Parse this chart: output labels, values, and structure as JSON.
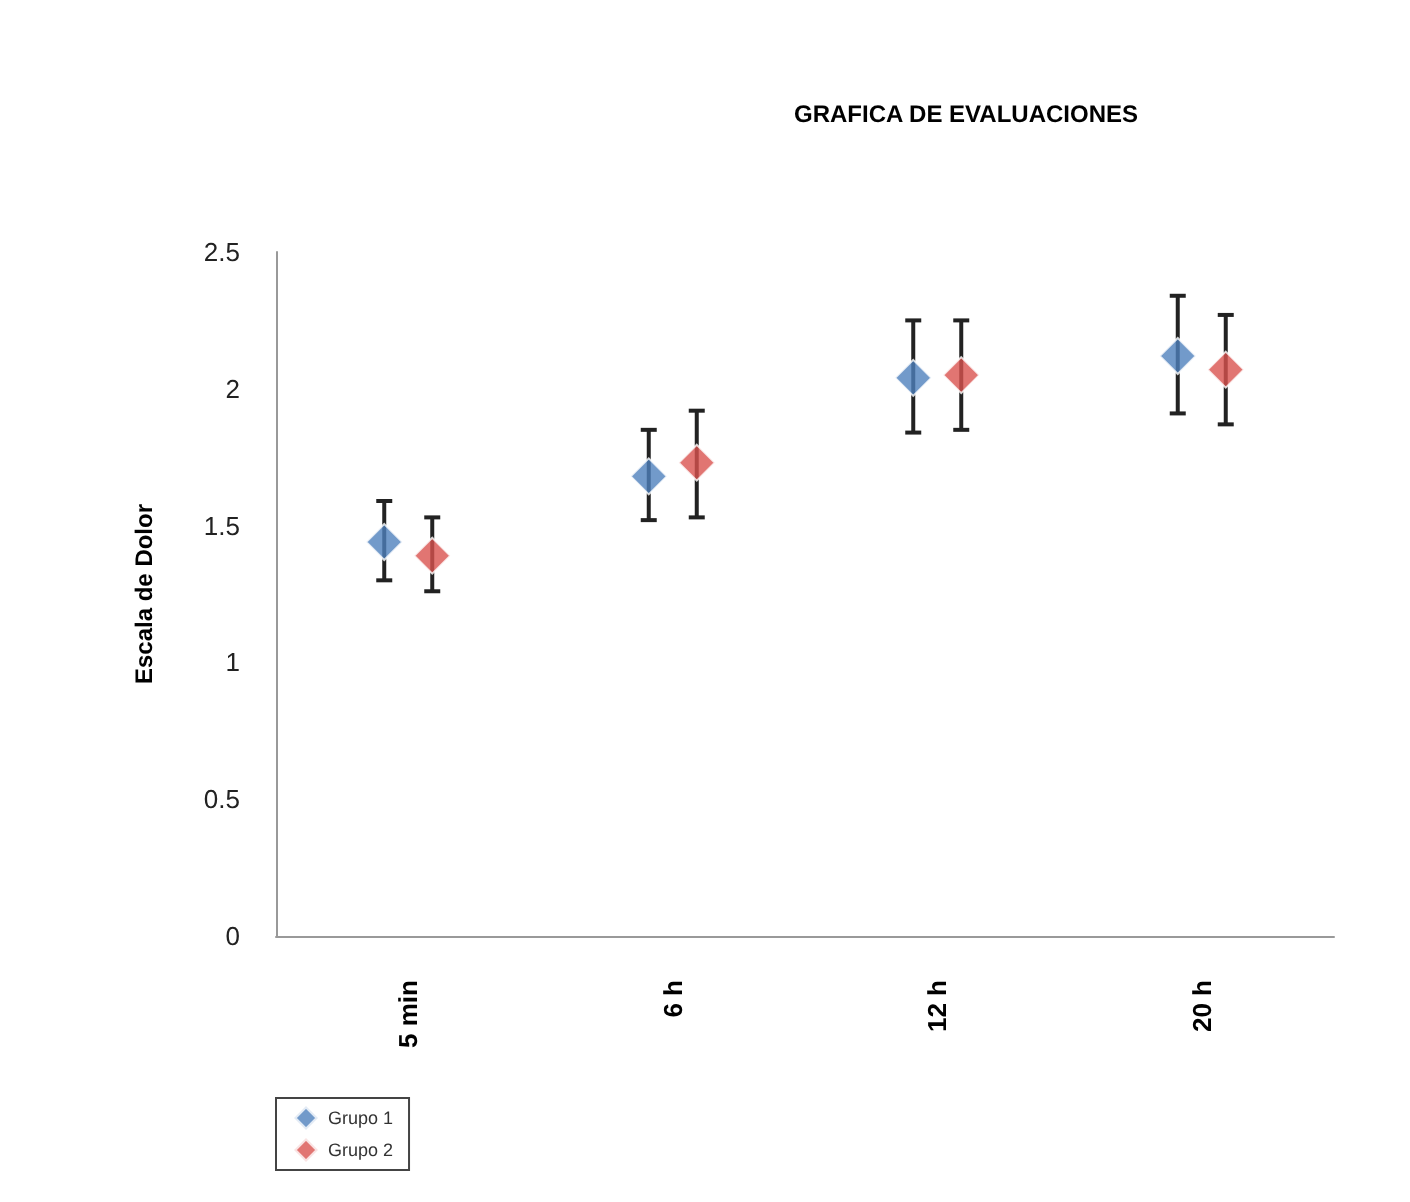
{
  "chart_data": {
    "type": "scatter",
    "title": "GRAFICA DE EVALUACIONES",
    "ylabel": "Escala de Dolor",
    "categories": [
      "5 min",
      "6 h",
      "12 h",
      "20 h"
    ],
    "series": [
      {
        "name": "Grupo 1",
        "color": "#4f81bd",
        "values": [
          1.44,
          1.68,
          2.04,
          2.12
        ],
        "errors": [
          [
            1.3,
            1.59
          ],
          [
            1.52,
            1.85
          ],
          [
            1.84,
            2.25
          ],
          [
            1.91,
            2.34
          ]
        ]
      },
      {
        "name": "Grupo 2",
        "color": "#d9534f",
        "values": [
          1.39,
          1.73,
          2.05,
          2.07
        ],
        "errors": [
          [
            1.26,
            1.53
          ],
          [
            1.53,
            1.92
          ],
          [
            1.85,
            2.25
          ],
          [
            1.87,
            2.27
          ]
        ]
      }
    ],
    "ylim": [
      0,
      2.5
    ],
    "yticks": [
      0,
      0.5,
      1,
      1.5,
      2,
      2.5
    ],
    "grid": false,
    "legend": "bottom left",
    "marker": "diamond"
  }
}
